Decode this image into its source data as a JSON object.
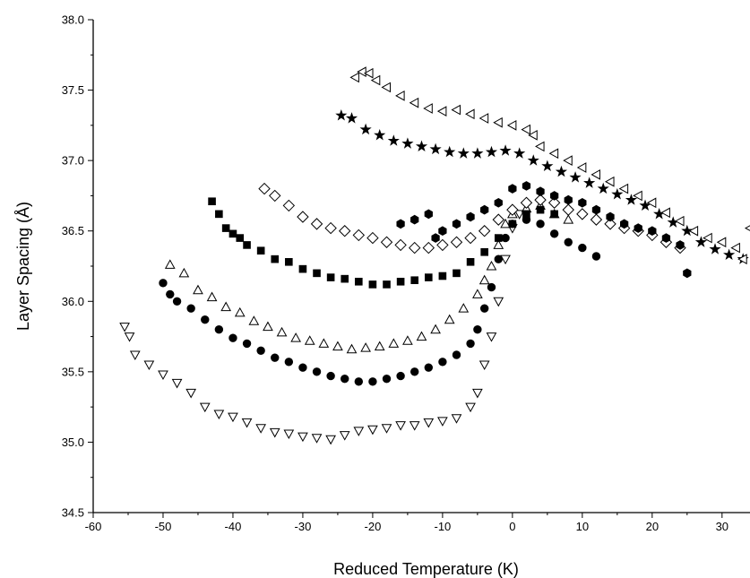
{
  "chart_data": {
    "type": "scatter",
    "title": "",
    "xlabel": "Reduced Temperature (K)",
    "ylabel": "Layer Spacing (Å)",
    "xlim": [
      -60,
      34
    ],
    "ylim": [
      34.5,
      38.0
    ],
    "xticks": [
      "-60",
      "-50",
      "-40",
      "-30",
      "-20",
      "-10",
      "0",
      "10",
      "20",
      "30"
    ],
    "yticks": [
      "34.5",
      "35.0",
      "35.5",
      "36.0",
      "36.5",
      "37.0",
      "37.5",
      "38.0"
    ],
    "grid": false,
    "legend": "none",
    "series": [
      {
        "marker": "triangle-down-open",
        "points": [
          [
            -55.5,
            35.82
          ],
          [
            -54.8,
            35.75
          ],
          [
            -54,
            35.62
          ],
          [
            -52,
            35.55
          ],
          [
            -50,
            35.48
          ],
          [
            -48,
            35.42
          ],
          [
            -46,
            35.35
          ],
          [
            -44,
            35.25
          ],
          [
            -42,
            35.2
          ],
          [
            -40,
            35.18
          ],
          [
            -38,
            35.14
          ],
          [
            -36,
            35.1
          ],
          [
            -34,
            35.07
          ],
          [
            -32,
            35.06
          ],
          [
            -30,
            35.04
          ],
          [
            -28,
            35.03
          ],
          [
            -26,
            35.02
          ],
          [
            -24,
            35.05
          ],
          [
            -22,
            35.08
          ],
          [
            -20,
            35.09
          ],
          [
            -18,
            35.1
          ],
          [
            -16,
            35.12
          ],
          [
            -14,
            35.12
          ],
          [
            -12,
            35.14
          ],
          [
            -10,
            35.15
          ],
          [
            -8,
            35.17
          ],
          [
            -6,
            35.25
          ],
          [
            -5,
            35.35
          ],
          [
            -4,
            35.55
          ],
          [
            -3,
            35.75
          ],
          [
            -2,
            36.0
          ],
          [
            -1,
            36.3
          ],
          [
            0,
            36.52
          ],
          [
            1,
            36.62
          ]
        ]
      },
      {
        "marker": "circle-filled",
        "points": [
          [
            -50,
            36.13
          ],
          [
            -49,
            36.05
          ],
          [
            -48,
            36.0
          ],
          [
            -46,
            35.95
          ],
          [
            -44,
            35.87
          ],
          [
            -42,
            35.8
          ],
          [
            -40,
            35.74
          ],
          [
            -38,
            35.7
          ],
          [
            -36,
            35.65
          ],
          [
            -34,
            35.6
          ],
          [
            -32,
            35.57
          ],
          [
            -30,
            35.53
          ],
          [
            -28,
            35.5
          ],
          [
            -26,
            35.47
          ],
          [
            -24,
            35.45
          ],
          [
            -22,
            35.43
          ],
          [
            -20,
            35.43
          ],
          [
            -18,
            35.45
          ],
          [
            -16,
            35.47
          ],
          [
            -14,
            35.5
          ],
          [
            -12,
            35.53
          ],
          [
            -10,
            35.57
          ],
          [
            -8,
            35.62
          ],
          [
            -6,
            35.7
          ],
          [
            -5,
            35.8
          ],
          [
            -4,
            35.95
          ],
          [
            -3,
            36.1
          ],
          [
            -2,
            36.3
          ],
          [
            -1,
            36.45
          ],
          [
            0,
            36.55
          ],
          [
            2,
            36.58
          ],
          [
            4,
            36.55
          ],
          [
            6,
            36.48
          ],
          [
            8,
            36.42
          ],
          [
            10,
            36.38
          ],
          [
            12,
            36.32
          ]
        ]
      },
      {
        "marker": "triangle-up-open",
        "points": [
          [
            -49,
            36.26
          ],
          [
            -47,
            36.2
          ],
          [
            -45,
            36.08
          ],
          [
            -43,
            36.03
          ],
          [
            -41,
            35.96
          ],
          [
            -39,
            35.92
          ],
          [
            -37,
            35.86
          ],
          [
            -35,
            35.82
          ],
          [
            -33,
            35.78
          ],
          [
            -31,
            35.74
          ],
          [
            -29,
            35.72
          ],
          [
            -27,
            35.7
          ],
          [
            -25,
            35.68
          ],
          [
            -23,
            35.66
          ],
          [
            -21,
            35.67
          ],
          [
            -19,
            35.68
          ],
          [
            -17,
            35.7
          ],
          [
            -15,
            35.72
          ],
          [
            -13,
            35.75
          ],
          [
            -11,
            35.8
          ],
          [
            -9,
            35.87
          ],
          [
            -7,
            35.95
          ],
          [
            -5,
            36.05
          ],
          [
            -4,
            36.15
          ],
          [
            -3,
            36.25
          ],
          [
            -2,
            36.4
          ],
          [
            -1,
            36.55
          ],
          [
            0,
            36.62
          ],
          [
            2,
            36.66
          ],
          [
            4,
            36.68
          ],
          [
            6,
            36.62
          ],
          [
            8,
            36.58
          ]
        ]
      },
      {
        "marker": "square-filled",
        "points": [
          [
            -43,
            36.71
          ],
          [
            -42,
            36.62
          ],
          [
            -41,
            36.52
          ],
          [
            -40,
            36.48
          ],
          [
            -39,
            36.45
          ],
          [
            -38,
            36.4
          ],
          [
            -36,
            36.36
          ],
          [
            -34,
            36.3
          ],
          [
            -32,
            36.28
          ],
          [
            -30,
            36.23
          ],
          [
            -28,
            36.2
          ],
          [
            -26,
            36.17
          ],
          [
            -24,
            36.16
          ],
          [
            -22,
            36.14
          ],
          [
            -20,
            36.12
          ],
          [
            -18,
            36.12
          ],
          [
            -16,
            36.14
          ],
          [
            -14,
            36.15
          ],
          [
            -12,
            36.17
          ],
          [
            -10,
            36.18
          ],
          [
            -8,
            36.2
          ],
          [
            -6,
            36.28
          ],
          [
            -4,
            36.35
          ],
          [
            -2,
            36.45
          ],
          [
            0,
            36.55
          ],
          [
            2,
            36.62
          ],
          [
            4,
            36.65
          ],
          [
            6,
            36.62
          ]
        ]
      },
      {
        "marker": "diamond-open",
        "points": [
          [
            -35.5,
            36.8
          ],
          [
            -34,
            36.75
          ],
          [
            -32,
            36.68
          ],
          [
            -30,
            36.6
          ],
          [
            -28,
            36.55
          ],
          [
            -26,
            36.52
          ],
          [
            -24,
            36.5
          ],
          [
            -22,
            36.47
          ],
          [
            -20,
            36.45
          ],
          [
            -18,
            36.42
          ],
          [
            -16,
            36.4
          ],
          [
            -14,
            36.38
          ],
          [
            -12,
            36.38
          ],
          [
            -10,
            36.4
          ],
          [
            -8,
            36.42
          ],
          [
            -6,
            36.45
          ],
          [
            -4,
            36.5
          ],
          [
            -2,
            36.58
          ],
          [
            0,
            36.65
          ],
          [
            2,
            36.7
          ],
          [
            4,
            36.72
          ],
          [
            6,
            36.7
          ],
          [
            8,
            36.65
          ],
          [
            10,
            36.62
          ],
          [
            12,
            36.58
          ],
          [
            14,
            36.55
          ],
          [
            16,
            36.52
          ],
          [
            18,
            36.5
          ],
          [
            20,
            36.47
          ],
          [
            22,
            36.42
          ],
          [
            24,
            36.38
          ]
        ]
      },
      {
        "marker": "hexagon-filled",
        "points": [
          [
            -16,
            36.55
          ],
          [
            -14,
            36.58
          ],
          [
            -12,
            36.62
          ],
          [
            -11,
            36.45
          ],
          [
            -10,
            36.5
          ],
          [
            -8,
            36.55
          ],
          [
            -6,
            36.6
          ],
          [
            -4,
            36.65
          ],
          [
            -2,
            36.7
          ],
          [
            0,
            36.8
          ],
          [
            2,
            36.82
          ],
          [
            4,
            36.78
          ],
          [
            6,
            36.75
          ],
          [
            8,
            36.72
          ],
          [
            10,
            36.7
          ],
          [
            12,
            36.65
          ],
          [
            14,
            36.6
          ],
          [
            16,
            36.55
          ],
          [
            18,
            36.52
          ],
          [
            20,
            36.5
          ],
          [
            22,
            36.45
          ],
          [
            24,
            36.4
          ],
          [
            25,
            36.2
          ]
        ]
      },
      {
        "marker": "star-filled",
        "points": [
          [
            -24.5,
            37.32
          ],
          [
            -23,
            37.3
          ],
          [
            -21,
            37.22
          ],
          [
            -19,
            37.18
          ],
          [
            -17,
            37.14
          ],
          [
            -15,
            37.12
          ],
          [
            -13,
            37.1
          ],
          [
            -11,
            37.08
          ],
          [
            -9,
            37.06
          ],
          [
            -7,
            37.05
          ],
          [
            -5,
            37.05
          ],
          [
            -3,
            37.06
          ],
          [
            -1,
            37.07
          ],
          [
            1,
            37.05
          ],
          [
            3,
            37.0
          ],
          [
            5,
            36.96
          ],
          [
            7,
            36.92
          ],
          [
            9,
            36.88
          ],
          [
            11,
            36.84
          ],
          [
            13,
            36.8
          ],
          [
            15,
            36.76
          ],
          [
            17,
            36.72
          ],
          [
            19,
            36.68
          ],
          [
            21,
            36.62
          ],
          [
            23,
            36.56
          ],
          [
            25,
            36.5
          ],
          [
            27,
            36.42
          ],
          [
            29,
            36.37
          ],
          [
            31,
            36.33
          ],
          [
            33,
            36.3
          ]
        ]
      },
      {
        "marker": "triangle-left-open",
        "points": [
          [
            -22.5,
            37.59
          ],
          [
            -21.5,
            37.63
          ],
          [
            -20.5,
            37.62
          ],
          [
            -19.5,
            37.57
          ],
          [
            -18,
            37.52
          ],
          [
            -16,
            37.46
          ],
          [
            -14,
            37.41
          ],
          [
            -12,
            37.37
          ],
          [
            -10,
            37.35
          ],
          [
            -8,
            37.36
          ],
          [
            -6,
            37.33
          ],
          [
            -4,
            37.3
          ],
          [
            -2,
            37.27
          ],
          [
            0,
            37.25
          ],
          [
            2,
            37.22
          ],
          [
            3,
            37.18
          ],
          [
            4,
            37.1
          ],
          [
            6,
            37.05
          ],
          [
            8,
            37.0
          ],
          [
            10,
            36.95
          ],
          [
            12,
            36.9
          ],
          [
            14,
            36.85
          ],
          [
            16,
            36.8
          ],
          [
            18,
            36.75
          ],
          [
            20,
            36.7
          ],
          [
            22,
            36.63
          ],
          [
            24,
            36.57
          ],
          [
            26,
            36.5
          ],
          [
            28,
            36.45
          ],
          [
            30,
            36.42
          ],
          [
            32,
            36.38
          ],
          [
            33,
            36.3
          ],
          [
            34,
            36.52
          ]
        ]
      }
    ]
  }
}
